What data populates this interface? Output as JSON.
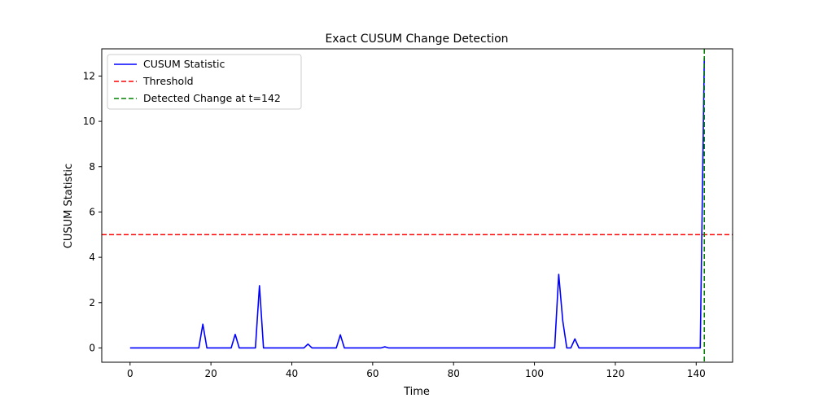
{
  "chart_data": {
    "type": "line",
    "title": "Exact CUSUM Change Detection",
    "xlabel": "Time",
    "ylabel": "CUSUM Statistic",
    "xlim": [
      -7,
      149
    ],
    "ylim": [
      -0.63,
      13.2
    ],
    "xticks": [
      0,
      20,
      40,
      60,
      80,
      100,
      120,
      140
    ],
    "yticks": [
      0,
      2,
      4,
      6,
      8,
      10,
      12
    ],
    "grid": false,
    "legend": {
      "position": "top-left",
      "entries": [
        {
          "label": "CUSUM Statistic",
          "color": "#0000ff",
          "style": "solid"
        },
        {
          "label": "Threshold",
          "color": "#ff0000",
          "style": "dashed"
        },
        {
          "label": "Detected Change at t=142",
          "color": "#008000",
          "style": "dashed"
        }
      ]
    },
    "series": [
      {
        "name": "CUSUM Statistic",
        "color": "#0000ff",
        "points": [
          [
            0,
            0
          ],
          [
            17,
            0
          ],
          [
            18,
            1.05
          ],
          [
            19,
            0
          ],
          [
            25,
            0
          ],
          [
            26,
            0.6
          ],
          [
            27,
            0
          ],
          [
            31,
            0
          ],
          [
            32,
            2.75
          ],
          [
            33,
            0
          ],
          [
            43,
            0
          ],
          [
            44,
            0.17
          ],
          [
            45,
            0
          ],
          [
            51,
            0
          ],
          [
            52,
            0.58
          ],
          [
            53,
            0
          ],
          [
            62,
            0
          ],
          [
            63,
            0.05
          ],
          [
            64,
            0
          ],
          [
            105,
            0
          ],
          [
            106,
            3.25
          ],
          [
            107,
            1.2
          ],
          [
            108,
            0
          ],
          [
            109,
            0
          ],
          [
            110,
            0.4
          ],
          [
            111,
            0
          ],
          [
            141,
            0
          ],
          [
            142,
            12.8
          ]
        ]
      }
    ],
    "threshold": {
      "name": "Threshold",
      "y": 5,
      "color": "#ff0000"
    },
    "change_point": {
      "name": "Detected Change at t=142",
      "x": 142,
      "color": "#008000"
    }
  }
}
